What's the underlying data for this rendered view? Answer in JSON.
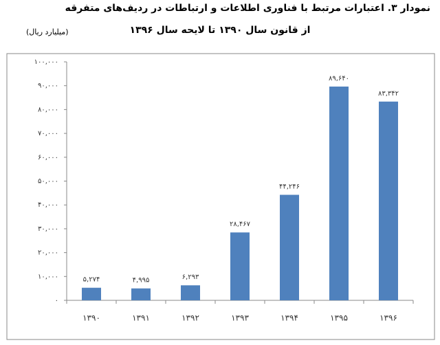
{
  "chart_data": {
    "type": "bar",
    "title": "نمودار ۳. اعتبارات مرتبط با فناوری اطلاعات و ارتباطات در ردیف‌های متفرقه",
    "subtitle": "از قانون سال ۱۳۹۰ تا لایحه سال ۱۳۹۶",
    "unit_label": "(میلیارد ریال)",
    "categories": [
      "۱۳۹۰",
      "۱۳۹۱",
      "۱۳۹۲",
      "۱۳۹۳",
      "۱۳۹۴",
      "۱۳۹۵",
      "۱۳۹۶"
    ],
    "values": [
      5274,
      4995,
      6293,
      28467,
      44246,
      89640,
      83342
    ],
    "value_labels": [
      "۵,۲۷۴",
      "۴,۹۹۵",
      "۶,۲۹۳",
      "۲۸,۴۶۷",
      "۴۴,۲۴۶",
      "۸۹,۶۴۰",
      "۸۳,۳۴۲"
    ],
    "color": "#4f81bd",
    "ylim": [
      0,
      100000
    ],
    "yticks": [
      {
        "value": 0,
        "label": "۰"
      },
      {
        "value": 10000,
        "label": "۱۰,۰۰۰"
      },
      {
        "value": 20000,
        "label": "۲۰,۰۰۰"
      },
      {
        "value": 30000,
        "label": "۳۰,۰۰۰"
      },
      {
        "value": 40000,
        "label": "۴۰,۰۰۰"
      },
      {
        "value": 50000,
        "label": "۵۰,۰۰۰"
      },
      {
        "value": 60000,
        "label": "۶۰,۰۰۰"
      },
      {
        "value": 70000,
        "label": "۷۰,۰۰۰"
      },
      {
        "value": 80000,
        "label": "۸۰,۰۰۰"
      },
      {
        "value": 90000,
        "label": "۹۰,۰۰۰"
      },
      {
        "value": 100000,
        "label": "۱۰۰,۰۰۰"
      }
    ],
    "grid": false
  }
}
